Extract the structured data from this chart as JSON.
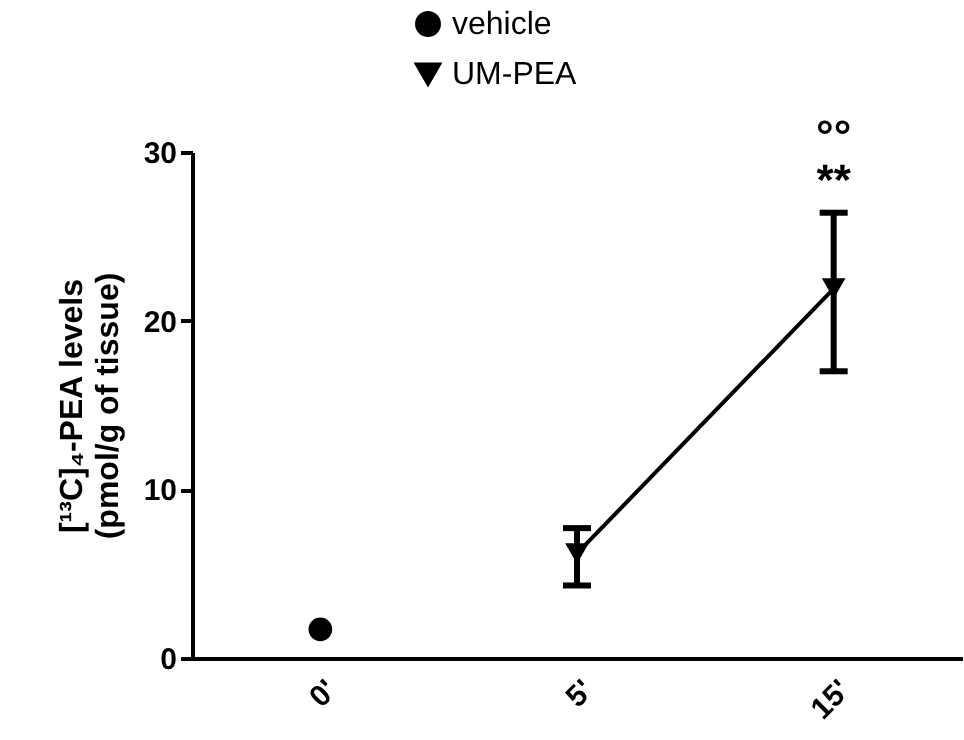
{
  "chart_data": {
    "type": "line",
    "ylabel": "[¹³C]₄-PEA levels\n(pmol/g of tissue)",
    "categories": [
      "0'",
      "5'",
      "15'"
    ],
    "series": [
      {
        "name": "vehicle",
        "type": "scatter",
        "color": "#000000",
        "marker": "circle",
        "values": [
          1.7,
          null,
          null
        ]
      },
      {
        "name": "UM-PEA",
        "color": "#000000",
        "marker": "triangle-down",
        "values": [
          null,
          6.2,
          21.9
        ],
        "errors": [
          null,
          [
            4.3,
            7.7
          ],
          [
            17.0,
            26.4
          ]
        ]
      }
    ],
    "ylim": [
      0,
      30
    ],
    "yticks": [
      0,
      10,
      20,
      30
    ],
    "grid": false,
    "legend": "top",
    "annotations": [
      {
        "text": "**",
        "x": "15'",
        "y": 26.4
      },
      {
        "text": "°°",
        "x": "15'",
        "y": 26.4
      }
    ]
  }
}
